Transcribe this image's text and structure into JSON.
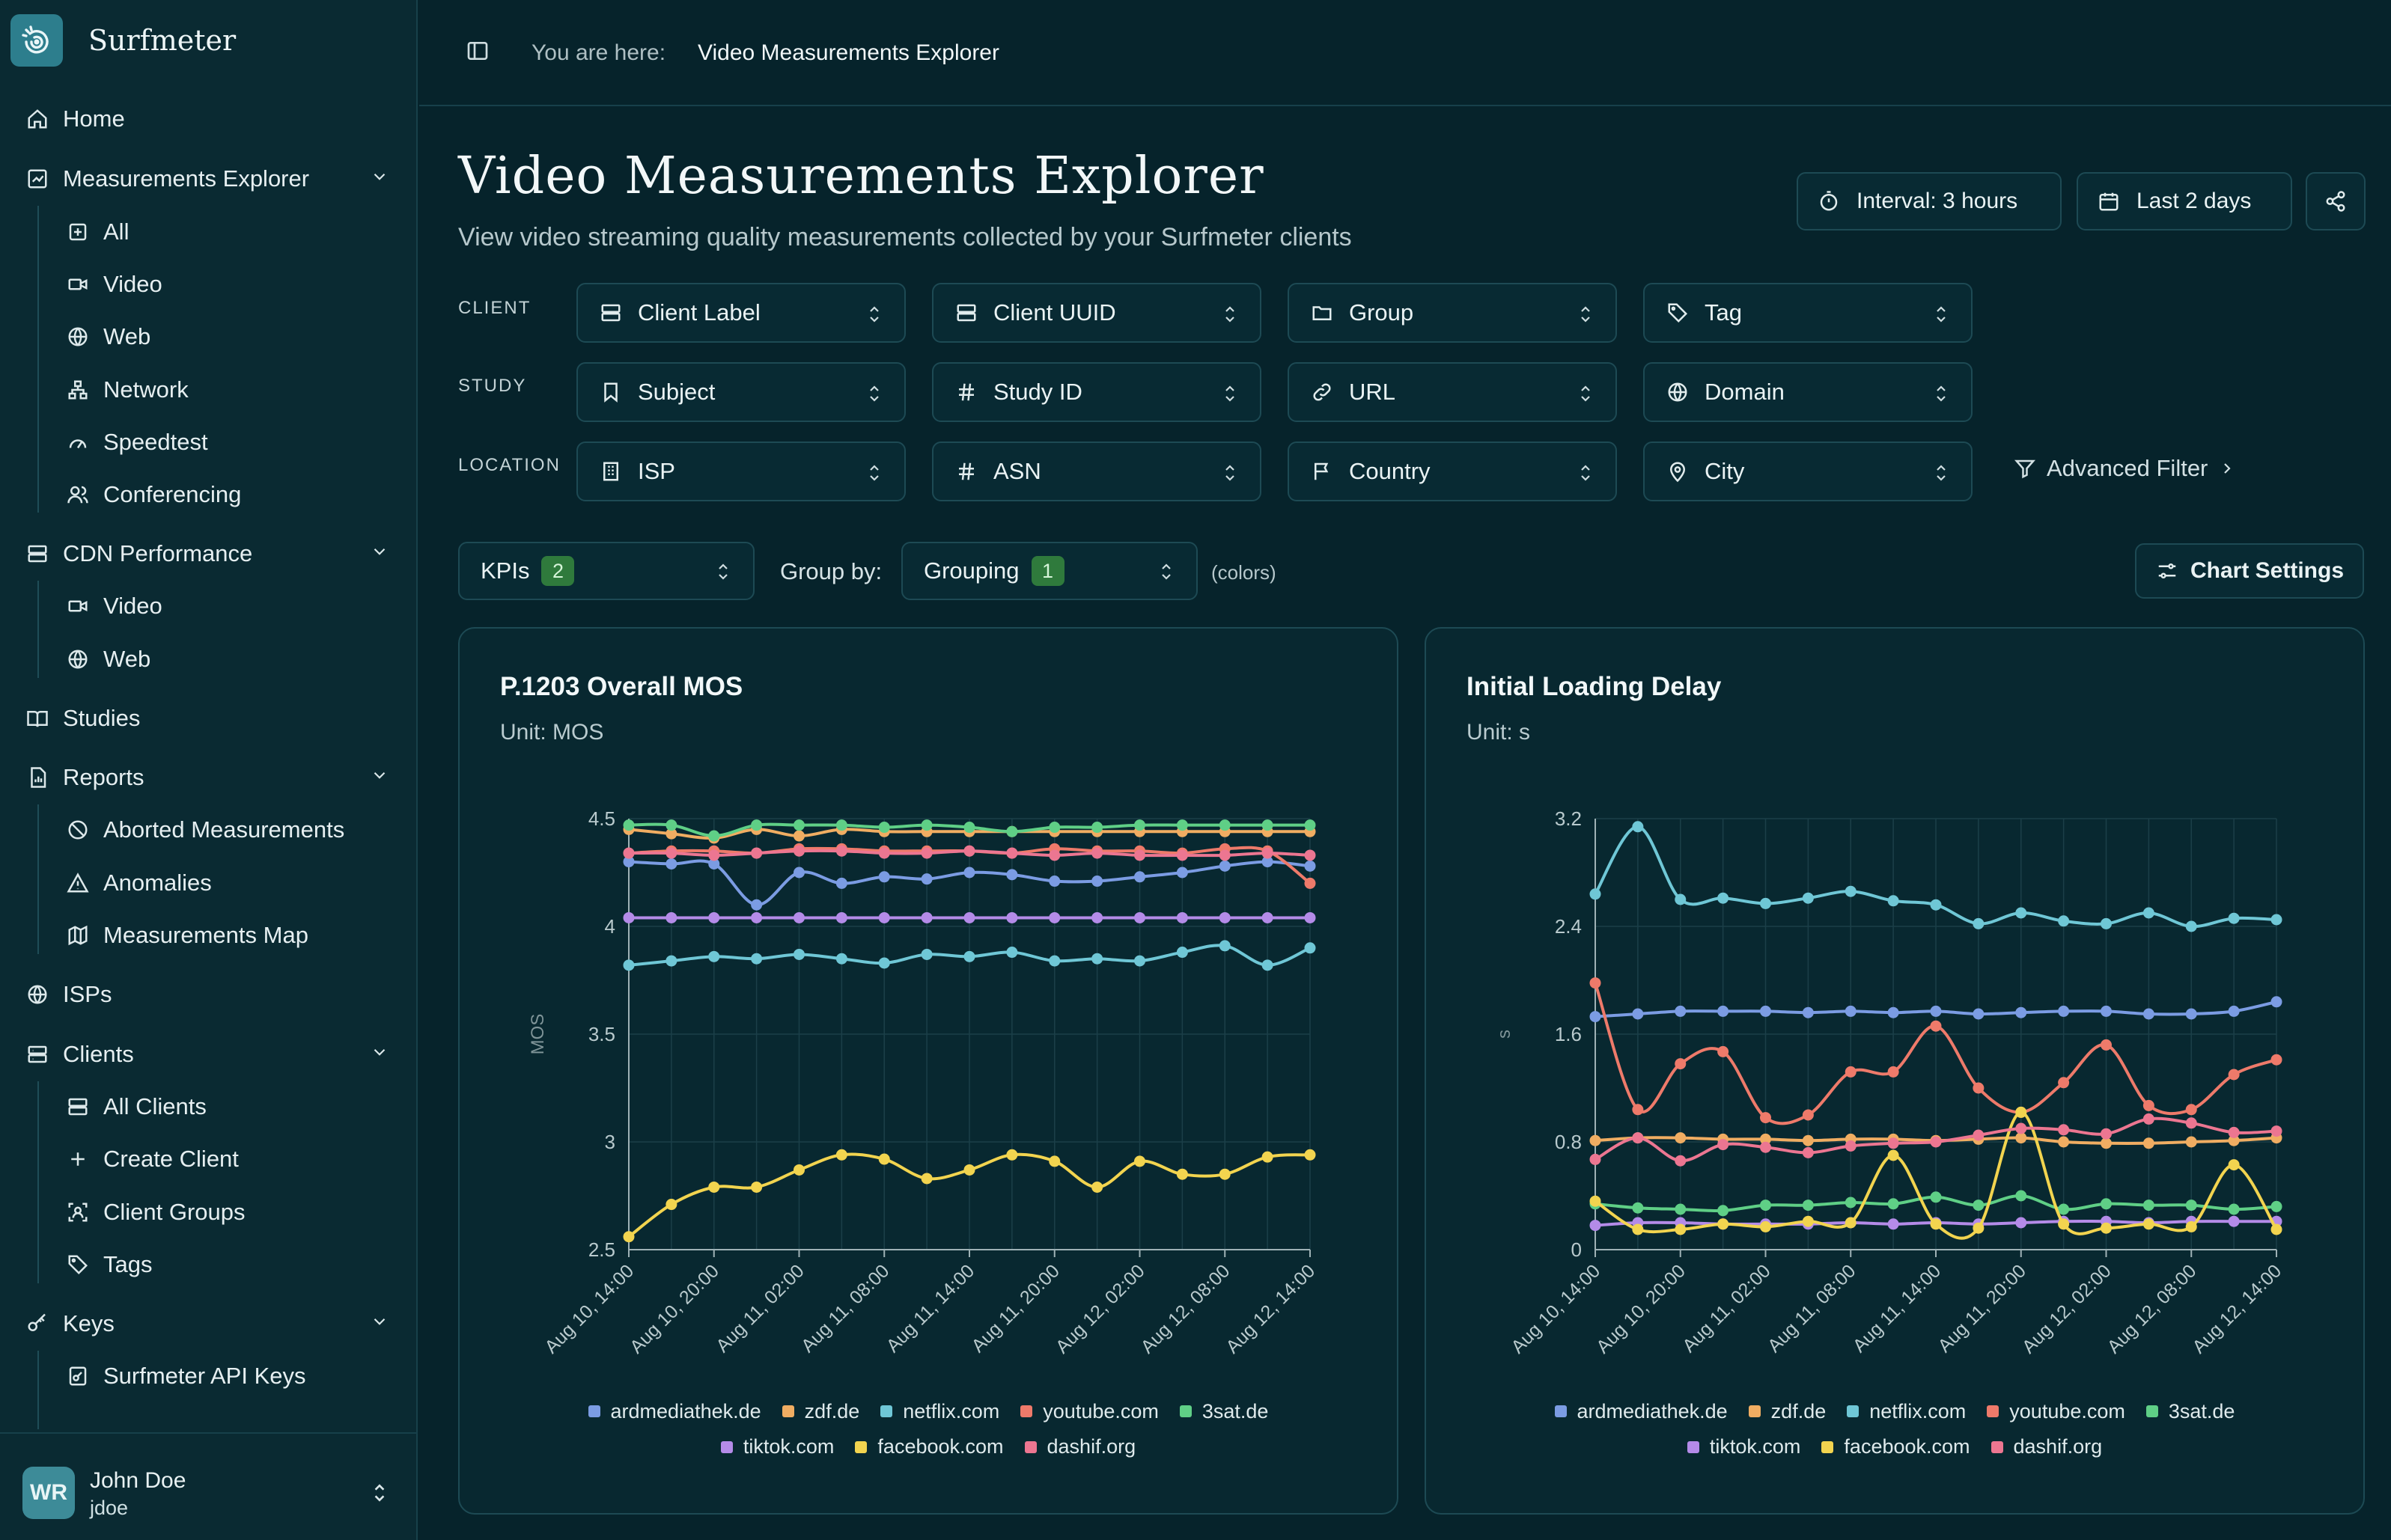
{
  "app": {
    "name": "Surfmeter"
  },
  "nav": {
    "home": "Home",
    "measurements_explorer": "Measurements Explorer",
    "me_all": "All",
    "me_video": "Video",
    "me_web": "Web",
    "me_network": "Network",
    "me_speedtest": "Speedtest",
    "me_conferencing": "Conferencing",
    "cdn_performance": "CDN Performance",
    "cdn_video": "Video",
    "cdn_web": "Web",
    "studies": "Studies",
    "reports": "Reports",
    "aborted": "Aborted Measurements",
    "anomalies": "Anomalies",
    "measurements_map": "Measurements Map",
    "isps": "ISPs",
    "clients": "Clients",
    "all_clients": "All Clients",
    "create_client": "Create Client",
    "client_groups": "Client Groups",
    "tags": "Tags",
    "keys": "Keys",
    "api_keys": "Surfmeter API Keys"
  },
  "user": {
    "initials": "WR",
    "name": "John Doe",
    "handle": "jdoe"
  },
  "breadcrumb": {
    "label": "You are here:",
    "current": "Video Measurements Explorer"
  },
  "page": {
    "title": "Video Measurements Explorer",
    "subtitle": "View video streaming quality measurements collected by your Surfmeter clients"
  },
  "toolbar": {
    "interval": "Interval: 3 hours",
    "range": "Last 2 days"
  },
  "filters": {
    "client_label": "CLIENT",
    "study_label": "STUDY",
    "location_label": "LOCATION",
    "client_label_sel": "Client Label",
    "client_uuid": "Client UUID",
    "group": "Group",
    "tag": "Tag",
    "subject": "Subject",
    "study_id": "Study ID",
    "url": "URL",
    "domain": "Domain",
    "isp": "ISP",
    "asn": "ASN",
    "country": "Country",
    "city": "City",
    "advanced": "Advanced Filter"
  },
  "controls": {
    "kpis": "KPIs",
    "kpis_count": "2",
    "group_by": "Group by:",
    "grouping": "Grouping",
    "grouping_count": "1",
    "colors_note": "(colors)",
    "chart_settings": "Chart Settings"
  },
  "series_colors": {
    "ardmediathek.de": "#7b9ce3",
    "zdf.de": "#f0ad62",
    "netflix.com": "#6fc7d6",
    "youtube.com": "#ee7a6a",
    "3sat.de": "#5fcf86",
    "tiktok.com": "#b48be8",
    "facebook.com": "#f2d44f",
    "dashif.org": "#ec7691"
  },
  "chart_data": [
    {
      "type": "line",
      "title": "P.1203 Overall MOS",
      "subtitle": "Unit: MOS",
      "ylabel": "MOS",
      "ylim": [
        2.5,
        4.5
      ],
      "yticks": [
        "2.5",
        "3",
        "3.5",
        "4",
        "4.5"
      ],
      "categories": [
        "Aug 10, 14:00",
        "Aug 10, 17:00",
        "Aug 10, 20:00",
        "Aug 10, 23:00",
        "Aug 11, 02:00",
        "Aug 11, 05:00",
        "Aug 11, 08:00",
        "Aug 11, 11:00",
        "Aug 11, 14:00",
        "Aug 11, 17:00",
        "Aug 11, 20:00",
        "Aug 11, 23:00",
        "Aug 12, 02:00",
        "Aug 12, 05:00",
        "Aug 12, 08:00",
        "Aug 12, 11:00",
        "Aug 12, 14:00"
      ],
      "xticks": [
        "Aug 10, 14:00",
        "Aug 10, 20:00",
        "Aug 11, 02:00",
        "Aug 11, 08:00",
        "Aug 11, 14:00",
        "Aug 11, 20:00",
        "Aug 12, 02:00",
        "Aug 12, 08:00",
        "Aug 12, 14:00"
      ],
      "legend_rows": [
        [
          "ardmediathek.de",
          "zdf.de",
          "netflix.com",
          "youtube.com",
          "3sat.de"
        ],
        [
          "tiktok.com",
          "facebook.com",
          "dashif.org"
        ]
      ],
      "series": [
        {
          "name": "ardmediathek.de",
          "values": [
            4.3,
            4.29,
            4.29,
            4.1,
            4.25,
            4.2,
            4.23,
            4.22,
            4.25,
            4.24,
            4.21,
            4.21,
            4.23,
            4.25,
            4.28,
            4.3,
            4.28
          ]
        },
        {
          "name": "zdf.de",
          "values": [
            4.45,
            4.43,
            4.41,
            4.45,
            4.42,
            4.45,
            4.44,
            4.44,
            4.44,
            4.44,
            4.44,
            4.44,
            4.44,
            4.44,
            4.44,
            4.44,
            4.44
          ]
        },
        {
          "name": "netflix.com",
          "values": [
            3.82,
            3.84,
            3.86,
            3.85,
            3.87,
            3.85,
            3.83,
            3.87,
            3.86,
            3.88,
            3.84,
            3.85,
            3.84,
            3.88,
            3.91,
            3.82,
            3.9
          ]
        },
        {
          "name": "youtube.com",
          "values": [
            4.34,
            4.35,
            4.35,
            4.34,
            4.36,
            4.36,
            4.35,
            4.35,
            4.35,
            4.34,
            4.36,
            4.35,
            4.35,
            4.34,
            4.36,
            4.35,
            4.2
          ]
        },
        {
          "name": "3sat.de",
          "values": [
            4.47,
            4.47,
            4.42,
            4.47,
            4.47,
            4.47,
            4.46,
            4.47,
            4.46,
            4.44,
            4.46,
            4.46,
            4.47,
            4.47,
            4.47,
            4.47,
            4.47
          ]
        },
        {
          "name": "tiktok.com",
          "values": [
            4.04,
            4.04,
            4.04,
            4.04,
            4.04,
            4.04,
            4.04,
            4.04,
            4.04,
            4.04,
            4.04,
            4.04,
            4.04,
            4.04,
            4.04,
            4.04,
            4.04
          ]
        },
        {
          "name": "facebook.com",
          "values": [
            2.56,
            2.71,
            2.79,
            2.79,
            2.87,
            2.94,
            2.92,
            2.83,
            2.87,
            2.94,
            2.91,
            2.79,
            2.91,
            2.85,
            2.85,
            2.93,
            2.94
          ]
        },
        {
          "name": "dashif.org",
          "values": [
            4.34,
            4.34,
            4.33,
            4.34,
            4.35,
            4.35,
            4.34,
            4.34,
            4.35,
            4.34,
            4.33,
            4.34,
            4.33,
            4.33,
            4.33,
            4.34,
            4.33
          ]
        }
      ]
    },
    {
      "type": "line",
      "title": "Initial Loading Delay",
      "subtitle": "Unit: s",
      "ylabel": "s",
      "ylim": [
        0,
        3.2
      ],
      "yticks": [
        "0",
        "0.8",
        "1.6",
        "2.4",
        "3.2"
      ],
      "categories": [
        "Aug 10, 14:00",
        "Aug 10, 17:00",
        "Aug 10, 20:00",
        "Aug 10, 23:00",
        "Aug 11, 02:00",
        "Aug 11, 05:00",
        "Aug 11, 08:00",
        "Aug 11, 11:00",
        "Aug 11, 14:00",
        "Aug 11, 17:00",
        "Aug 11, 20:00",
        "Aug 11, 23:00",
        "Aug 12, 02:00",
        "Aug 12, 05:00",
        "Aug 12, 08:00",
        "Aug 12, 11:00",
        "Aug 12, 14:00"
      ],
      "xticks": [
        "Aug 10, 14:00",
        "Aug 10, 20:00",
        "Aug 11, 02:00",
        "Aug 11, 08:00",
        "Aug 11, 14:00",
        "Aug 11, 20:00",
        "Aug 12, 02:00",
        "Aug 12, 08:00",
        "Aug 12, 14:00"
      ],
      "legend_rows": [
        [
          "ardmediathek.de",
          "zdf.de",
          "netflix.com",
          "youtube.com",
          "3sat.de"
        ],
        [
          "tiktok.com",
          "facebook.com",
          "dashif.org"
        ]
      ],
      "series": [
        {
          "name": "ardmediathek.de",
          "values": [
            1.73,
            1.75,
            1.77,
            1.77,
            1.77,
            1.76,
            1.77,
            1.76,
            1.77,
            1.75,
            1.76,
            1.77,
            1.77,
            1.75,
            1.75,
            1.77,
            1.84
          ]
        },
        {
          "name": "zdf.de",
          "values": [
            0.81,
            0.83,
            0.83,
            0.82,
            0.82,
            0.81,
            0.82,
            0.82,
            0.81,
            0.82,
            0.83,
            0.8,
            0.79,
            0.79,
            0.8,
            0.81,
            0.83
          ]
        },
        {
          "name": "netflix.com",
          "values": [
            2.64,
            3.14,
            2.6,
            2.61,
            2.57,
            2.61,
            2.66,
            2.59,
            2.56,
            2.42,
            2.5,
            2.44,
            2.42,
            2.5,
            2.4,
            2.46,
            2.45
          ]
        },
        {
          "name": "youtube.com",
          "values": [
            1.98,
            1.04,
            1.38,
            1.47,
            0.98,
            1.0,
            1.32,
            1.32,
            1.66,
            1.2,
            1.02,
            1.24,
            1.52,
            1.07,
            1.04,
            1.3,
            1.41
          ]
        },
        {
          "name": "3sat.de",
          "values": [
            0.34,
            0.31,
            0.3,
            0.29,
            0.33,
            0.33,
            0.35,
            0.34,
            0.39,
            0.33,
            0.4,
            0.3,
            0.34,
            0.33,
            0.33,
            0.3,
            0.32
          ]
        },
        {
          "name": "tiktok.com",
          "values": [
            0.18,
            0.2,
            0.2,
            0.19,
            0.19,
            0.19,
            0.2,
            0.19,
            0.2,
            0.19,
            0.2,
            0.21,
            0.21,
            0.2,
            0.21,
            0.21,
            0.21
          ]
        },
        {
          "name": "facebook.com",
          "values": [
            0.36,
            0.15,
            0.15,
            0.19,
            0.17,
            0.21,
            0.2,
            0.7,
            0.19,
            0.16,
            1.02,
            0.19,
            0.16,
            0.19,
            0.17,
            0.63,
            0.15
          ]
        },
        {
          "name": "dashif.org",
          "values": [
            0.67,
            0.83,
            0.66,
            0.78,
            0.76,
            0.72,
            0.77,
            0.79,
            0.8,
            0.85,
            0.9,
            0.89,
            0.86,
            0.97,
            0.94,
            0.87,
            0.88
          ]
        }
      ]
    }
  ]
}
